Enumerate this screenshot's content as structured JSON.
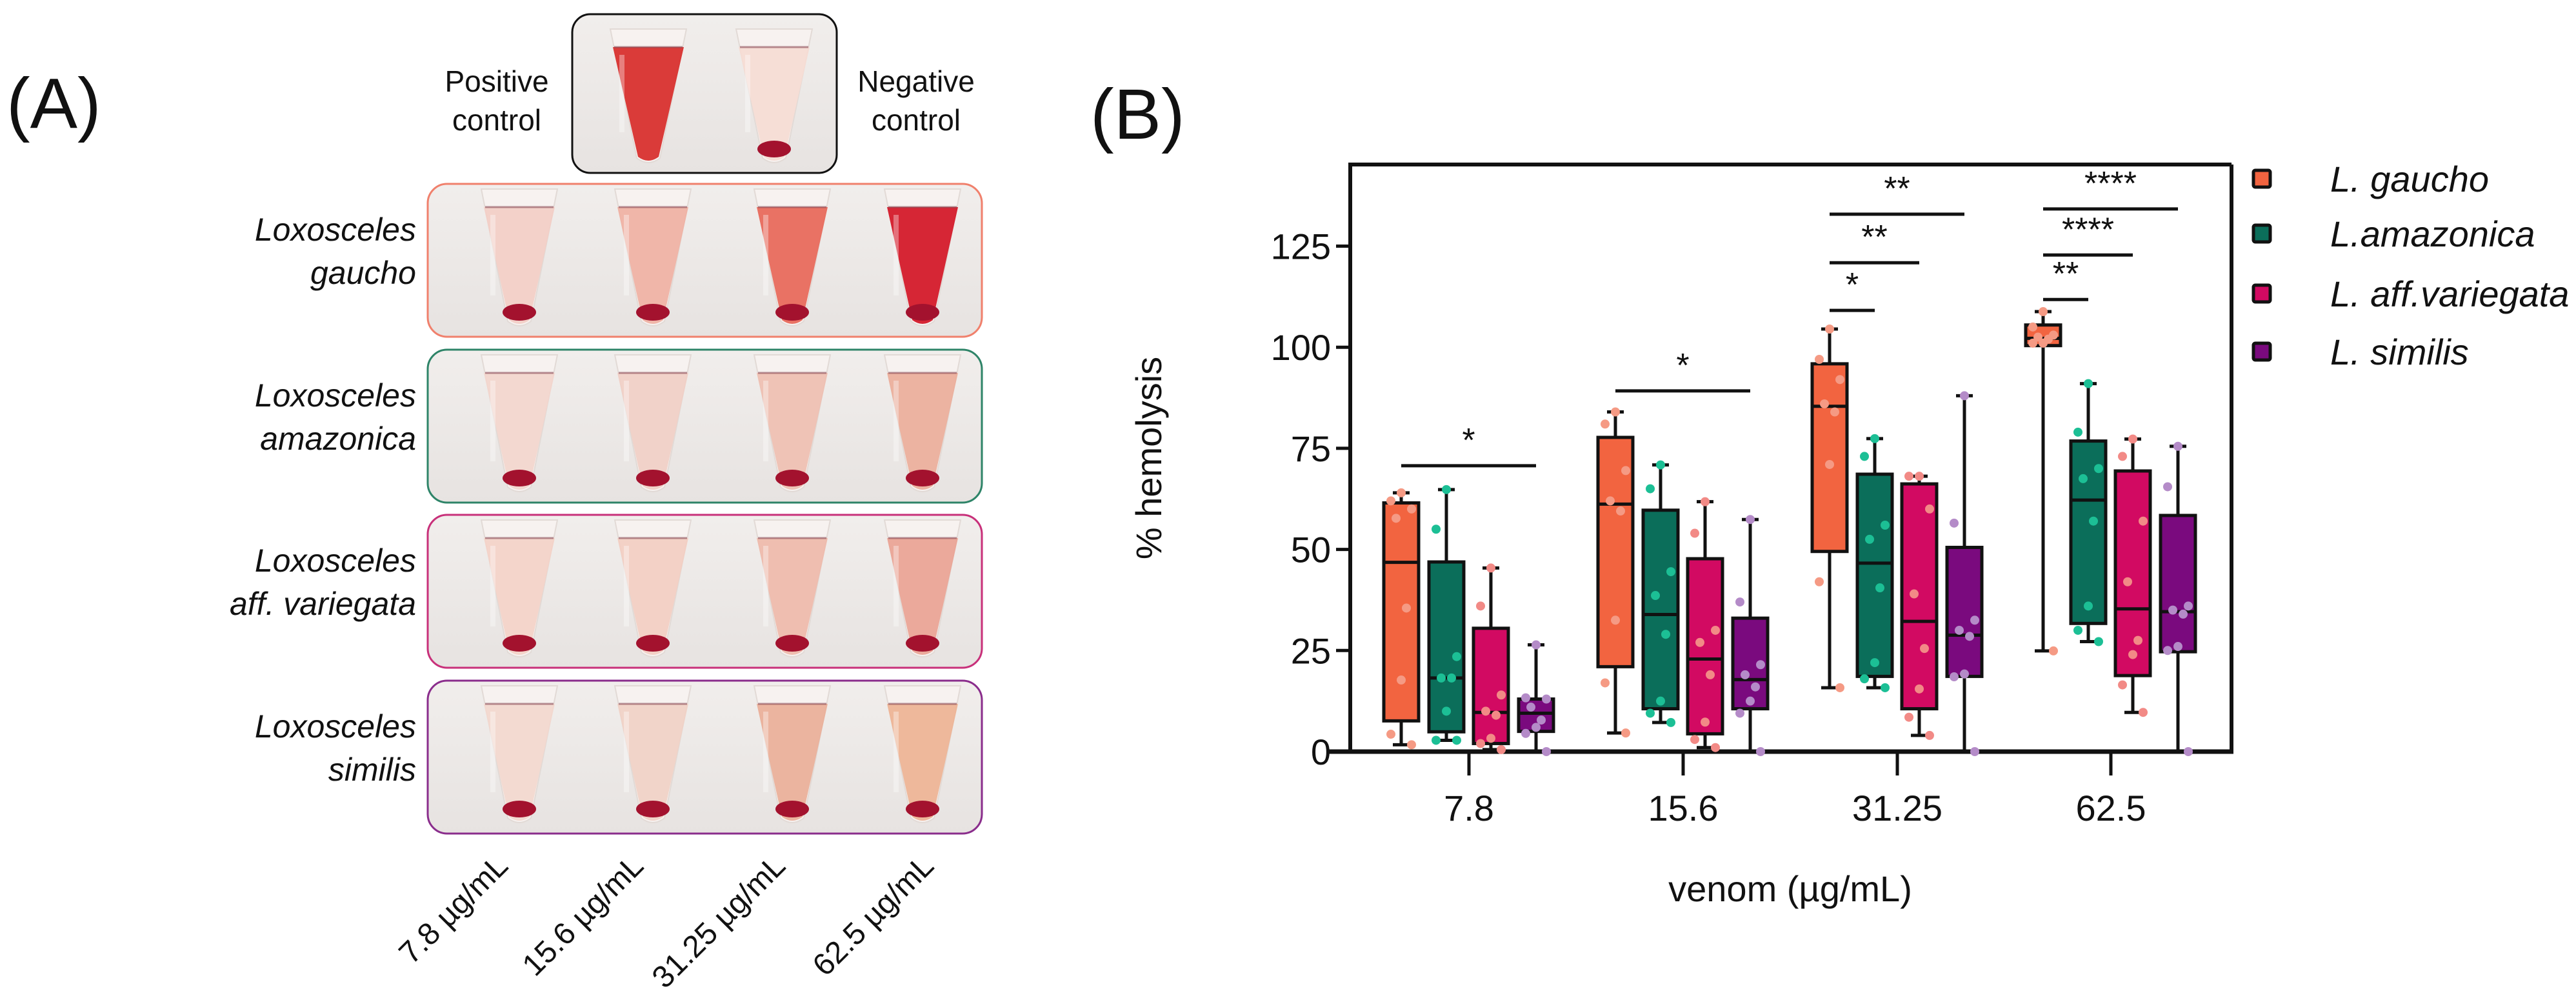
{
  "panel_a": {
    "label": "(A)",
    "positive_control": [
      "Positive",
      "control"
    ],
    "negative_control": [
      "Negative",
      "control"
    ],
    "control_colors": {
      "positive": "#D8302E",
      "negative": "#F6DCD4"
    },
    "pellet_color": "#A3122E",
    "rows": [
      {
        "genus": "Loxosceles",
        "species": "gaucho",
        "border_color": "#F0806C",
        "liquid_colors": [
          "#F2CFC6",
          "#EFB2A4",
          "#E86A5C",
          "#D41A2A"
        ],
        "pellet": [
          true,
          true,
          true,
          true
        ]
      },
      {
        "genus": "Loxosceles",
        "species": "amazonica",
        "border_color": "#2E8468",
        "liquid_colors": [
          "#F2D6CE",
          "#F0D0C6",
          "#EEC0B2",
          "#EBAF9C"
        ],
        "pellet": [
          true,
          true,
          true,
          true
        ]
      },
      {
        "genus": "Loxosceles",
        "species": "aff. variegata",
        "border_color": "#C8307A",
        "liquid_colors": [
          "#F3D3C8",
          "#F2CFC3",
          "#EEBBAC",
          "#EAA496"
        ],
        "pellet": [
          true,
          true,
          true,
          true
        ]
      },
      {
        "genus": "Loxosceles",
        "species": "similis",
        "border_color": "#8A2D8C",
        "liquid_colors": [
          "#F2D8CF",
          "#F0D2C6",
          "#EAB09A",
          "#EDB496"
        ],
        "pellet": [
          true,
          true,
          true,
          true
        ]
      }
    ],
    "concentrations": [
      "7.8 µg/mL",
      "15.6 µg/mL",
      "31.25 µg/mL",
      "62.5 µg/mL"
    ]
  },
  "chart_data": {
    "type": "box",
    "panel_label": "(B)",
    "title": "",
    "xlabel": "venom (µg/mL)",
    "ylabel": "% hemolysis",
    "categories": [
      "7.8",
      "15.6",
      "31.25",
      "62.5"
    ],
    "ylim": [
      0,
      145
    ],
    "yticks": [
      "0",
      "25",
      "50",
      "75",
      "100",
      "125"
    ],
    "ytick_values": [
      0,
      25,
      50,
      75,
      100,
      125
    ],
    "grid": false,
    "legend_position": "right",
    "series": [
      {
        "name": "L. gaucho",
        "color": "#F26440",
        "point_color": "#F59A84",
        "boxes": [
          {
            "min": 1.7,
            "q1": 7.6,
            "median": 46.8,
            "q3": 61.5,
            "max": 64,
            "points": [
              64,
              62,
              60,
              57.7,
              35.5,
              17.7,
              4.3,
              1.7
            ]
          },
          {
            "min": 4.6,
            "q1": 21,
            "median": 61.2,
            "q3": 77.7,
            "max": 84,
            "points": [
              84,
              81,
              69.5,
              62,
              59.5,
              32.5,
              17,
              4.6
            ]
          },
          {
            "min": 15.8,
            "q1": 49.5,
            "median": 85.4,
            "q3": 95.9,
            "max": 104.5,
            "points": [
              104.5,
              97,
              92,
              86,
              84,
              71,
              42,
              15.8
            ]
          },
          {
            "min": 24.9,
            "q1": 100.4,
            "median": 102.2,
            "q3": 105.5,
            "max": 108.8,
            "points": [
              108.8,
              105,
              103,
              102.5,
              102,
              101,
              101,
              24.9
            ]
          }
        ]
      },
      {
        "name": "L.amazonica",
        "color": "#0B6E5A",
        "point_color": "#1CBF95",
        "boxes": [
          {
            "min": 2.8,
            "q1": 4.9,
            "median": 18.2,
            "q3": 46.9,
            "max": 64.8,
            "points": [
              64.8,
              55,
              23.5,
              18.2,
              18.2,
              10,
              2.8,
              2.8
            ]
          },
          {
            "min": 7.2,
            "q1": 10.6,
            "median": 33.9,
            "q3": 59.7,
            "max": 70.9,
            "points": [
              70.9,
              65,
              44.5,
              38.6,
              29,
              12.5,
              9.5,
              7.2
            ]
          },
          {
            "min": 15.8,
            "q1": 18.6,
            "median": 46.6,
            "q3": 68.6,
            "max": 77.4,
            "points": [
              77.4,
              73,
              56,
              52.5,
              40.5,
              22,
              18,
              15.8
            ]
          },
          {
            "min": 27.2,
            "q1": 31.7,
            "median": 62.2,
            "q3": 76.8,
            "max": 91,
            "points": [
              91,
              79,
              70,
              67.5,
              57,
              36,
              30,
              27.2
            ]
          }
        ]
      },
      {
        "name": "L. aff.variegata",
        "color": "#D20A62",
        "point_color": "#F28A86",
        "boxes": [
          {
            "min": 0.5,
            "q1": 2,
            "median": 9.7,
            "q3": 30.5,
            "max": 45.4,
            "points": [
              45.4,
              36,
              14,
              10,
              9,
              3.3,
              2,
              0.5
            ]
          },
          {
            "min": 1,
            "q1": 4.4,
            "median": 22.9,
            "q3": 47.7,
            "max": 61.8,
            "points": [
              61.8,
              54,
              30,
              27,
              19,
              7.3,
              3,
              1
            ]
          },
          {
            "min": 4,
            "q1": 10.6,
            "median": 32.2,
            "q3": 66.2,
            "max": 68.1,
            "points": [
              68.1,
              68.1,
              60,
              39,
              25.5,
              15.5,
              8.5,
              4
            ]
          },
          {
            "min": 9.7,
            "q1": 18.8,
            "median": 35.3,
            "q3": 69.4,
            "max": 77.3,
            "points": [
              77.3,
              73,
              57,
              42,
              27.5,
              24,
              16.5,
              9.7
            ]
          }
        ]
      },
      {
        "name": "L. similis",
        "color": "#7A0A7E",
        "point_color": "#B48BC8",
        "boxes": [
          {
            "min": 0,
            "q1": 5,
            "median": 9.5,
            "q3": 13,
            "max": 26.4,
            "points": [
              26.4,
              13.3,
              13,
              11,
              7.8,
              6,
              4.5,
              0
            ]
          },
          {
            "min": 0,
            "q1": 10.6,
            "median": 17.8,
            "q3": 33,
            "max": 57.4,
            "points": [
              57.4,
              37,
              21.5,
              19,
              16,
              12.5,
              9.5,
              0
            ]
          },
          {
            "min": 0,
            "q1": 18.6,
            "median": 28.8,
            "q3": 50.5,
            "max": 88,
            "points": [
              88,
              56.5,
              32.5,
              30,
              28.5,
              19.2,
              18.5,
              0
            ]
          },
          {
            "min": 0,
            "q1": 24.7,
            "median": 34.6,
            "q3": 58.4,
            "max": 75.5,
            "points": [
              75.5,
              65.5,
              36,
              35,
              34,
              26,
              25,
              0
            ]
          }
        ]
      }
    ],
    "significance": [
      {
        "group": 0,
        "from": 0,
        "to": 3,
        "y": 70.7,
        "label": "*"
      },
      {
        "group": 1,
        "from": 0,
        "to": 3,
        "y": 89.2,
        "label": "*"
      },
      {
        "group": 2,
        "from": 0,
        "to": 1,
        "y": 109.1,
        "label": "*"
      },
      {
        "group": 2,
        "from": 0,
        "to": 2,
        "y": 120.9,
        "label": "**"
      },
      {
        "group": 2,
        "from": 0,
        "to": 3,
        "y": 132.9,
        "label": "**"
      },
      {
        "group": 3,
        "from": 0,
        "to": 1,
        "y": 111.8,
        "label": "**"
      },
      {
        "group": 3,
        "from": 0,
        "to": 2,
        "y": 122.8,
        "label": "****"
      },
      {
        "group": 3,
        "from": 0,
        "to": 3,
        "y": 134.2,
        "label": "****"
      }
    ]
  }
}
